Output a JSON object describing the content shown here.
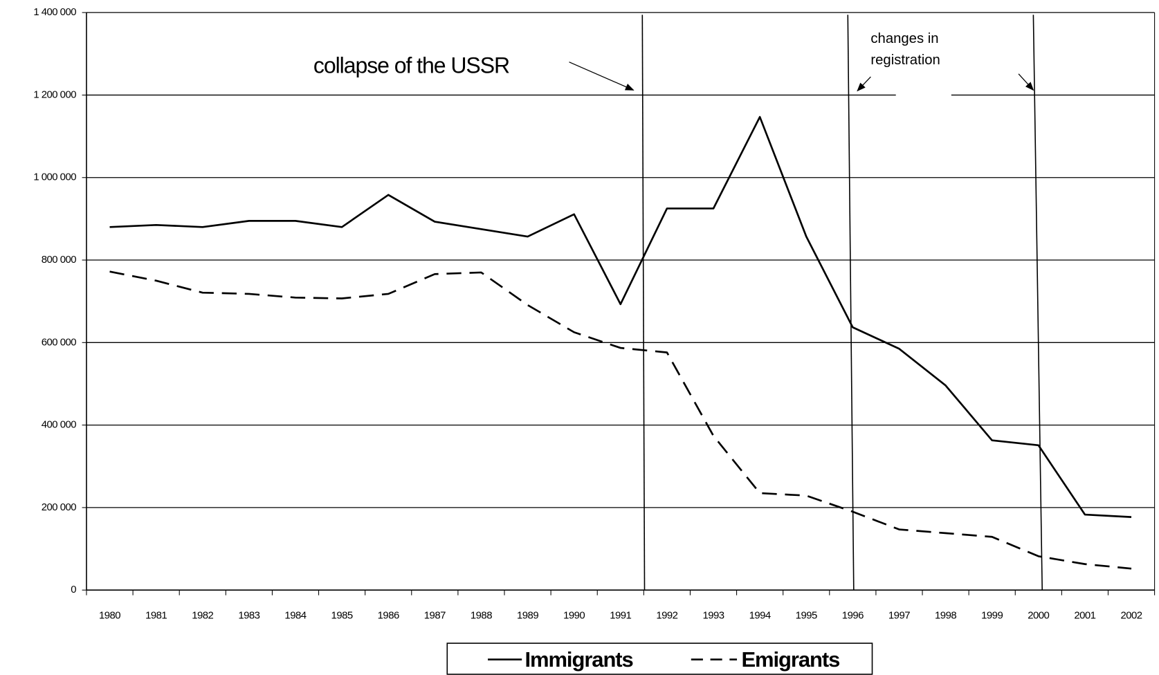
{
  "chart_data": {
    "type": "line",
    "categories": [
      "1980",
      "1981",
      "1982",
      "1983",
      "1984",
      "1985",
      "1986",
      "1987",
      "1988",
      "1989",
      "1990",
      "1991",
      "1992",
      "1993",
      "1994",
      "1995",
      "1996",
      "1997",
      "1998",
      "1999",
      "2000",
      "2001",
      "2002"
    ],
    "series": [
      {
        "name": "Immigrants",
        "color": "#000000",
        "dash": "solid",
        "values": [
          880000,
          885000,
          880000,
          895000,
          895000,
          880000,
          958000,
          893000,
          875000,
          857000,
          911000,
          693000,
          925000,
          925000,
          1147000,
          857000,
          637000,
          585000,
          496000,
          363000,
          351000,
          183000,
          177000
        ]
      },
      {
        "name": "Emigrants",
        "color": "#000000",
        "dash": "dashed",
        "values": [
          772000,
          750000,
          721000,
          718000,
          709000,
          707000,
          718000,
          766000,
          770000,
          691000,
          625000,
          587000,
          576000,
          374000,
          235000,
          229000,
          190000,
          147000,
          138000,
          129000,
          82000,
          63000,
          52000
        ]
      }
    ],
    "ylim": [
      0,
      1400000
    ],
    "yticks": [
      0,
      {
        "value": 200000,
        "label": "200 000"
      },
      {
        "value": 400000,
        "label": "400 000"
      },
      {
        "value": 600000,
        "label": "600 000"
      },
      {
        "value": 800000,
        "label": "800 000"
      },
      {
        "value": 1000000,
        "label": "1 000 000"
      },
      {
        "value": 1200000,
        "label": "1 200 000"
      },
      {
        "value": 1400000,
        "label": "1 400 000"
      }
    ],
    "grid": true,
    "legend": "bottom",
    "annotations": [
      "collapse of the USSR",
      "changes in registration"
    ]
  }
}
